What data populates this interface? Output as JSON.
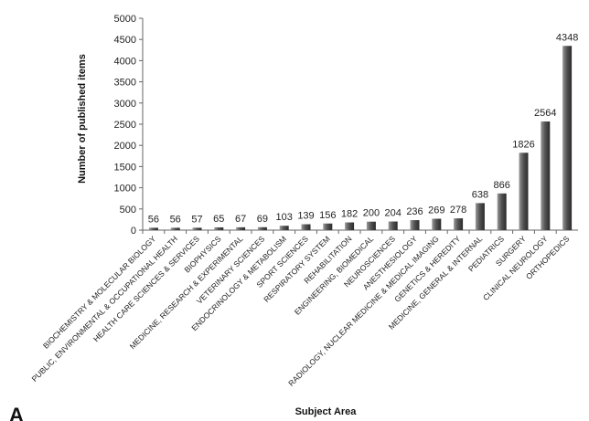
{
  "panel_label": "A",
  "chart_data": {
    "type": "bar",
    "title": "",
    "xlabel": "Subject Area",
    "ylabel": "Number of published items",
    "ylim": [
      0,
      5000
    ],
    "yticks": [
      0,
      500,
      1000,
      1500,
      2000,
      2500,
      3000,
      3500,
      4000,
      4500,
      5000
    ],
    "grid": false,
    "legend": "none",
    "bar_color": "#555555",
    "categories": [
      "BIOCHEMISTRY & MOLECULAR BIOLOGY",
      "PUBLIC, ENVIRONMENTAL & OCCUPATIONAL HEALTH",
      "HEALTH CARE SCIENCES & SERVICES",
      "BIOPHYSICS",
      "MEDICINE, RESEARCH & EXPERIMENTAL",
      "VETERINARY SCIENCES",
      "ENDOCRINOLOGY & METABOLISM",
      "SPORT SCIENCES",
      "RESPIRATORY SYSTEM",
      "REHABILITATION",
      "ENGINEERING, BIOMEDICAL",
      "NEUROSCIENCES",
      "ANESTHESIOLOGY",
      "RADIOLOGY, NUCLEAR MEDICINE & MEDICAL IMAGING",
      "GENETICS & HEREDITY",
      "MEDICINE, GENERAL & INTERNAL",
      "PEDIATRICS",
      "SURGERY",
      "CLINICAL NEUROLOGY",
      "ORTHOPEDICS"
    ],
    "values": [
      56,
      56,
      57,
      65,
      67,
      69,
      103,
      139,
      156,
      182,
      200,
      204,
      236,
      269,
      278,
      638,
      866,
      1826,
      2564,
      4348
    ]
  }
}
